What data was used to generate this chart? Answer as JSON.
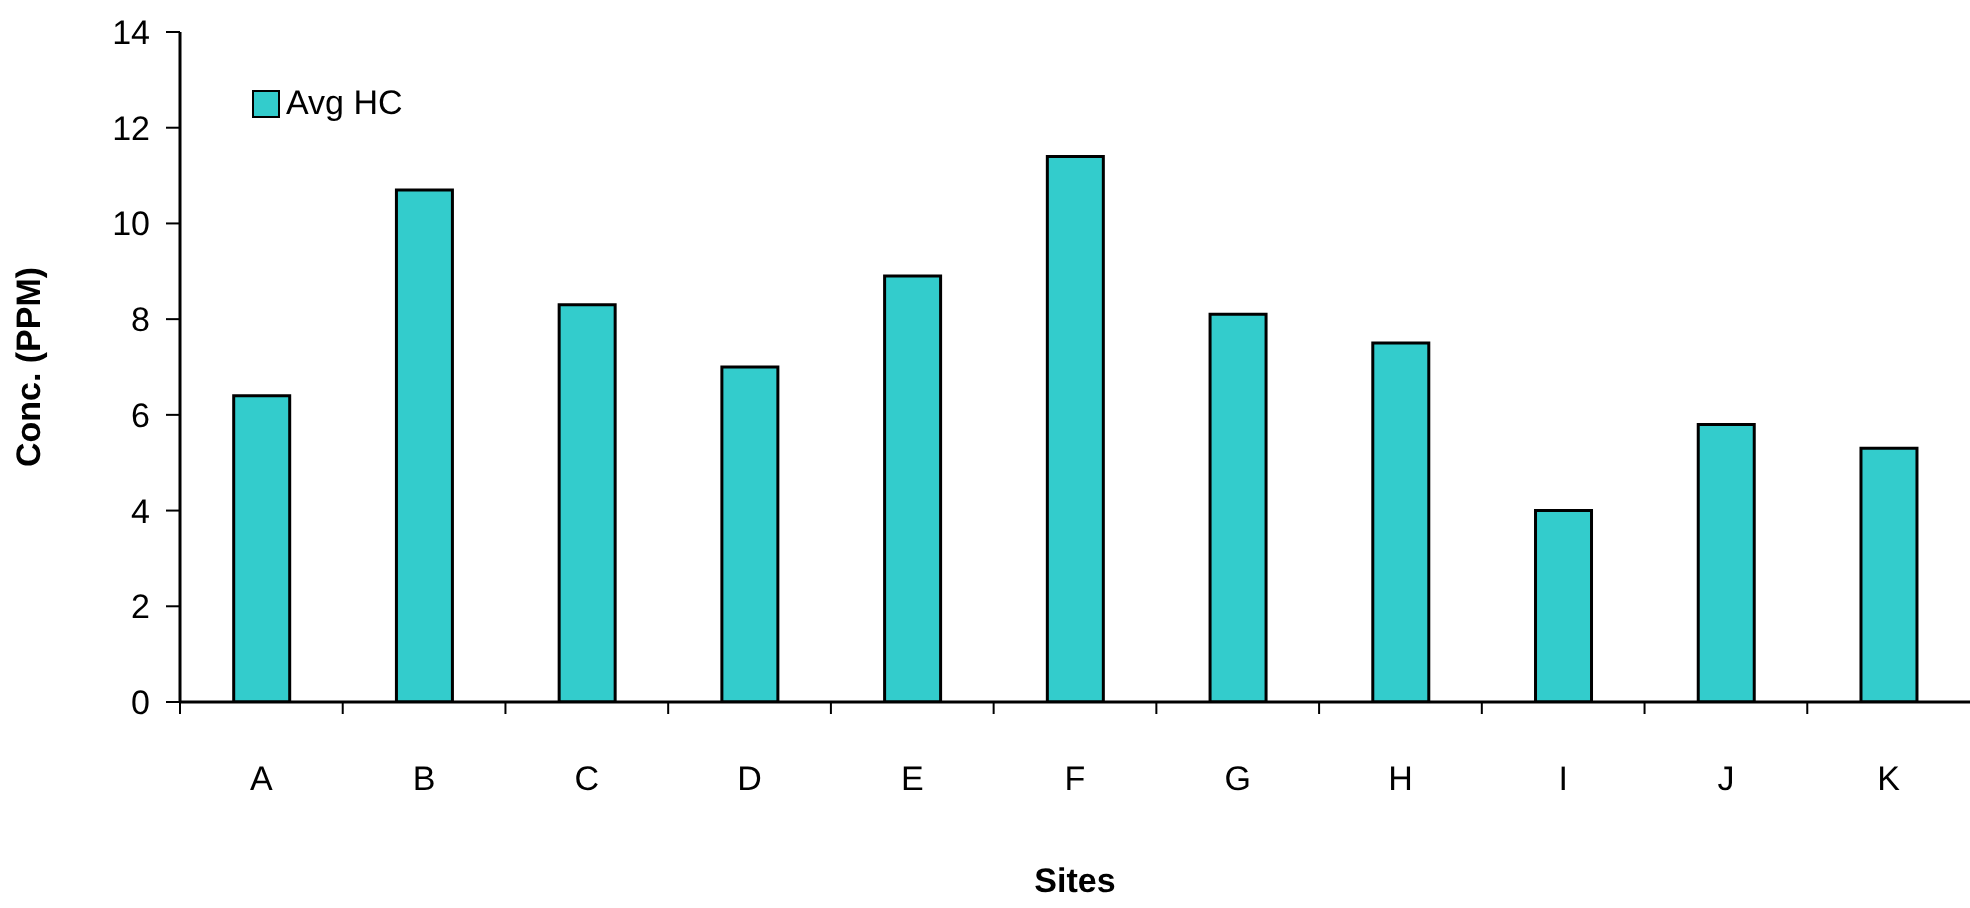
{
  "chart_data": {
    "type": "bar",
    "xlabel": "Sites",
    "ylabel": "Conc. (PPM)",
    "categories": [
      "A",
      "B",
      "C",
      "D",
      "E",
      "F",
      "G",
      "H",
      "I",
      "J",
      "K"
    ],
    "series": [
      {
        "name": "Avg HC",
        "color": "#33cccc",
        "values": [
          6.4,
          10.7,
          8.3,
          7.0,
          8.9,
          11.4,
          8.1,
          7.5,
          4.0,
          5.8,
          5.3
        ]
      }
    ],
    "ylim": [
      0,
      14
    ],
    "yticks": [
      0,
      2,
      4,
      6,
      8,
      10,
      12,
      14
    ],
    "grid": false,
    "legend": "top left"
  }
}
